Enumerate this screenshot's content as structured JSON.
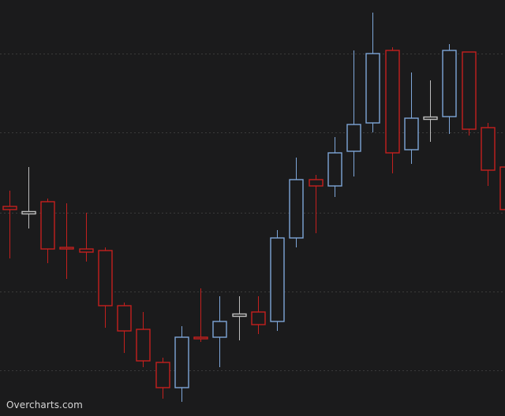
{
  "app": {
    "watermark": "Overcharts.com"
  },
  "colors": {
    "background": "#1b1b1c",
    "grid": "#3a3a3a",
    "bullish": "#7ea6d8",
    "bearish": "#c4201e",
    "neutral": "#bdbdbd"
  },
  "chart_data": {
    "type": "candlestick",
    "grid": true,
    "grid_style": "dotted horizontal",
    "ylim": [
      0,
      528
    ],
    "y_axis_inverted_note": "",
    "candles": [
      {
        "open": 266,
        "high": 286,
        "low": 200,
        "close": 262
      },
      {
        "open": 258,
        "high": 316,
        "low": 238,
        "close": 258
      },
      {
        "open": 272,
        "high": 276,
        "low": 194,
        "close": 212
      },
      {
        "open": 214,
        "high": 270,
        "low": 174,
        "close": 212
      },
      {
        "open": 212,
        "high": 258,
        "low": 196,
        "close": 208
      },
      {
        "open": 210,
        "high": 214,
        "low": 112,
        "close": 140
      },
      {
        "open": 140,
        "high": 144,
        "low": 80,
        "close": 108
      },
      {
        "open": 110,
        "high": 132,
        "low": 62,
        "close": 70
      },
      {
        "open": 68,
        "high": 74,
        "low": 22,
        "close": 36
      },
      {
        "open": 36,
        "high": 114,
        "low": 18,
        "close": 100
      },
      {
        "open": 100,
        "high": 162,
        "low": 94,
        "close": 98
      },
      {
        "open": 100,
        "high": 152,
        "low": 62,
        "close": 120
      },
      {
        "open": 128,
        "high": 152,
        "low": 96,
        "close": 128
      },
      {
        "open": 132,
        "high": 152,
        "low": 104,
        "close": 116
      },
      {
        "open": 120,
        "high": 236,
        "low": 108,
        "close": 226
      },
      {
        "open": 226,
        "high": 328,
        "low": 214,
        "close": 300
      },
      {
        "open": 300,
        "high": 306,
        "low": 232,
        "close": 292
      },
      {
        "open": 292,
        "high": 354,
        "low": 278,
        "close": 334
      },
      {
        "open": 336,
        "high": 464,
        "low": 304,
        "close": 370
      },
      {
        "open": 372,
        "high": 512,
        "low": 360,
        "close": 460
      },
      {
        "open": 464,
        "high": 468,
        "low": 308,
        "close": 334
      },
      {
        "open": 338,
        "high": 436,
        "low": 320,
        "close": 378
      },
      {
        "open": 378,
        "high": 426,
        "low": 348,
        "close": 378
      },
      {
        "open": 380,
        "high": 472,
        "low": 358,
        "close": 464
      },
      {
        "open": 462,
        "high": 462,
        "low": 356,
        "close": 364
      },
      {
        "open": 366,
        "high": 372,
        "low": 292,
        "close": 312
      },
      {
        "open": 316,
        "high": 322,
        "low": 242,
        "close": 262
      }
    ]
  }
}
